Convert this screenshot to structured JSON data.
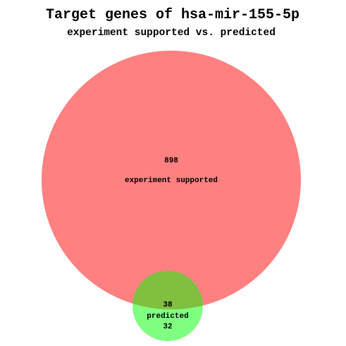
{
  "chart_data": {
    "type": "venn",
    "title": "Target genes of hsa-mir-155-5p",
    "subtitle": "experiment supported vs. predicted",
    "sets": [
      {
        "name": "experiment supported",
        "only_count": "898",
        "color": "#ff8080"
      },
      {
        "name": "predicted",
        "only_count": "32",
        "color": "#80ff80"
      }
    ],
    "overlap_count": "38",
    "overlap_color": "#80bf40"
  }
}
